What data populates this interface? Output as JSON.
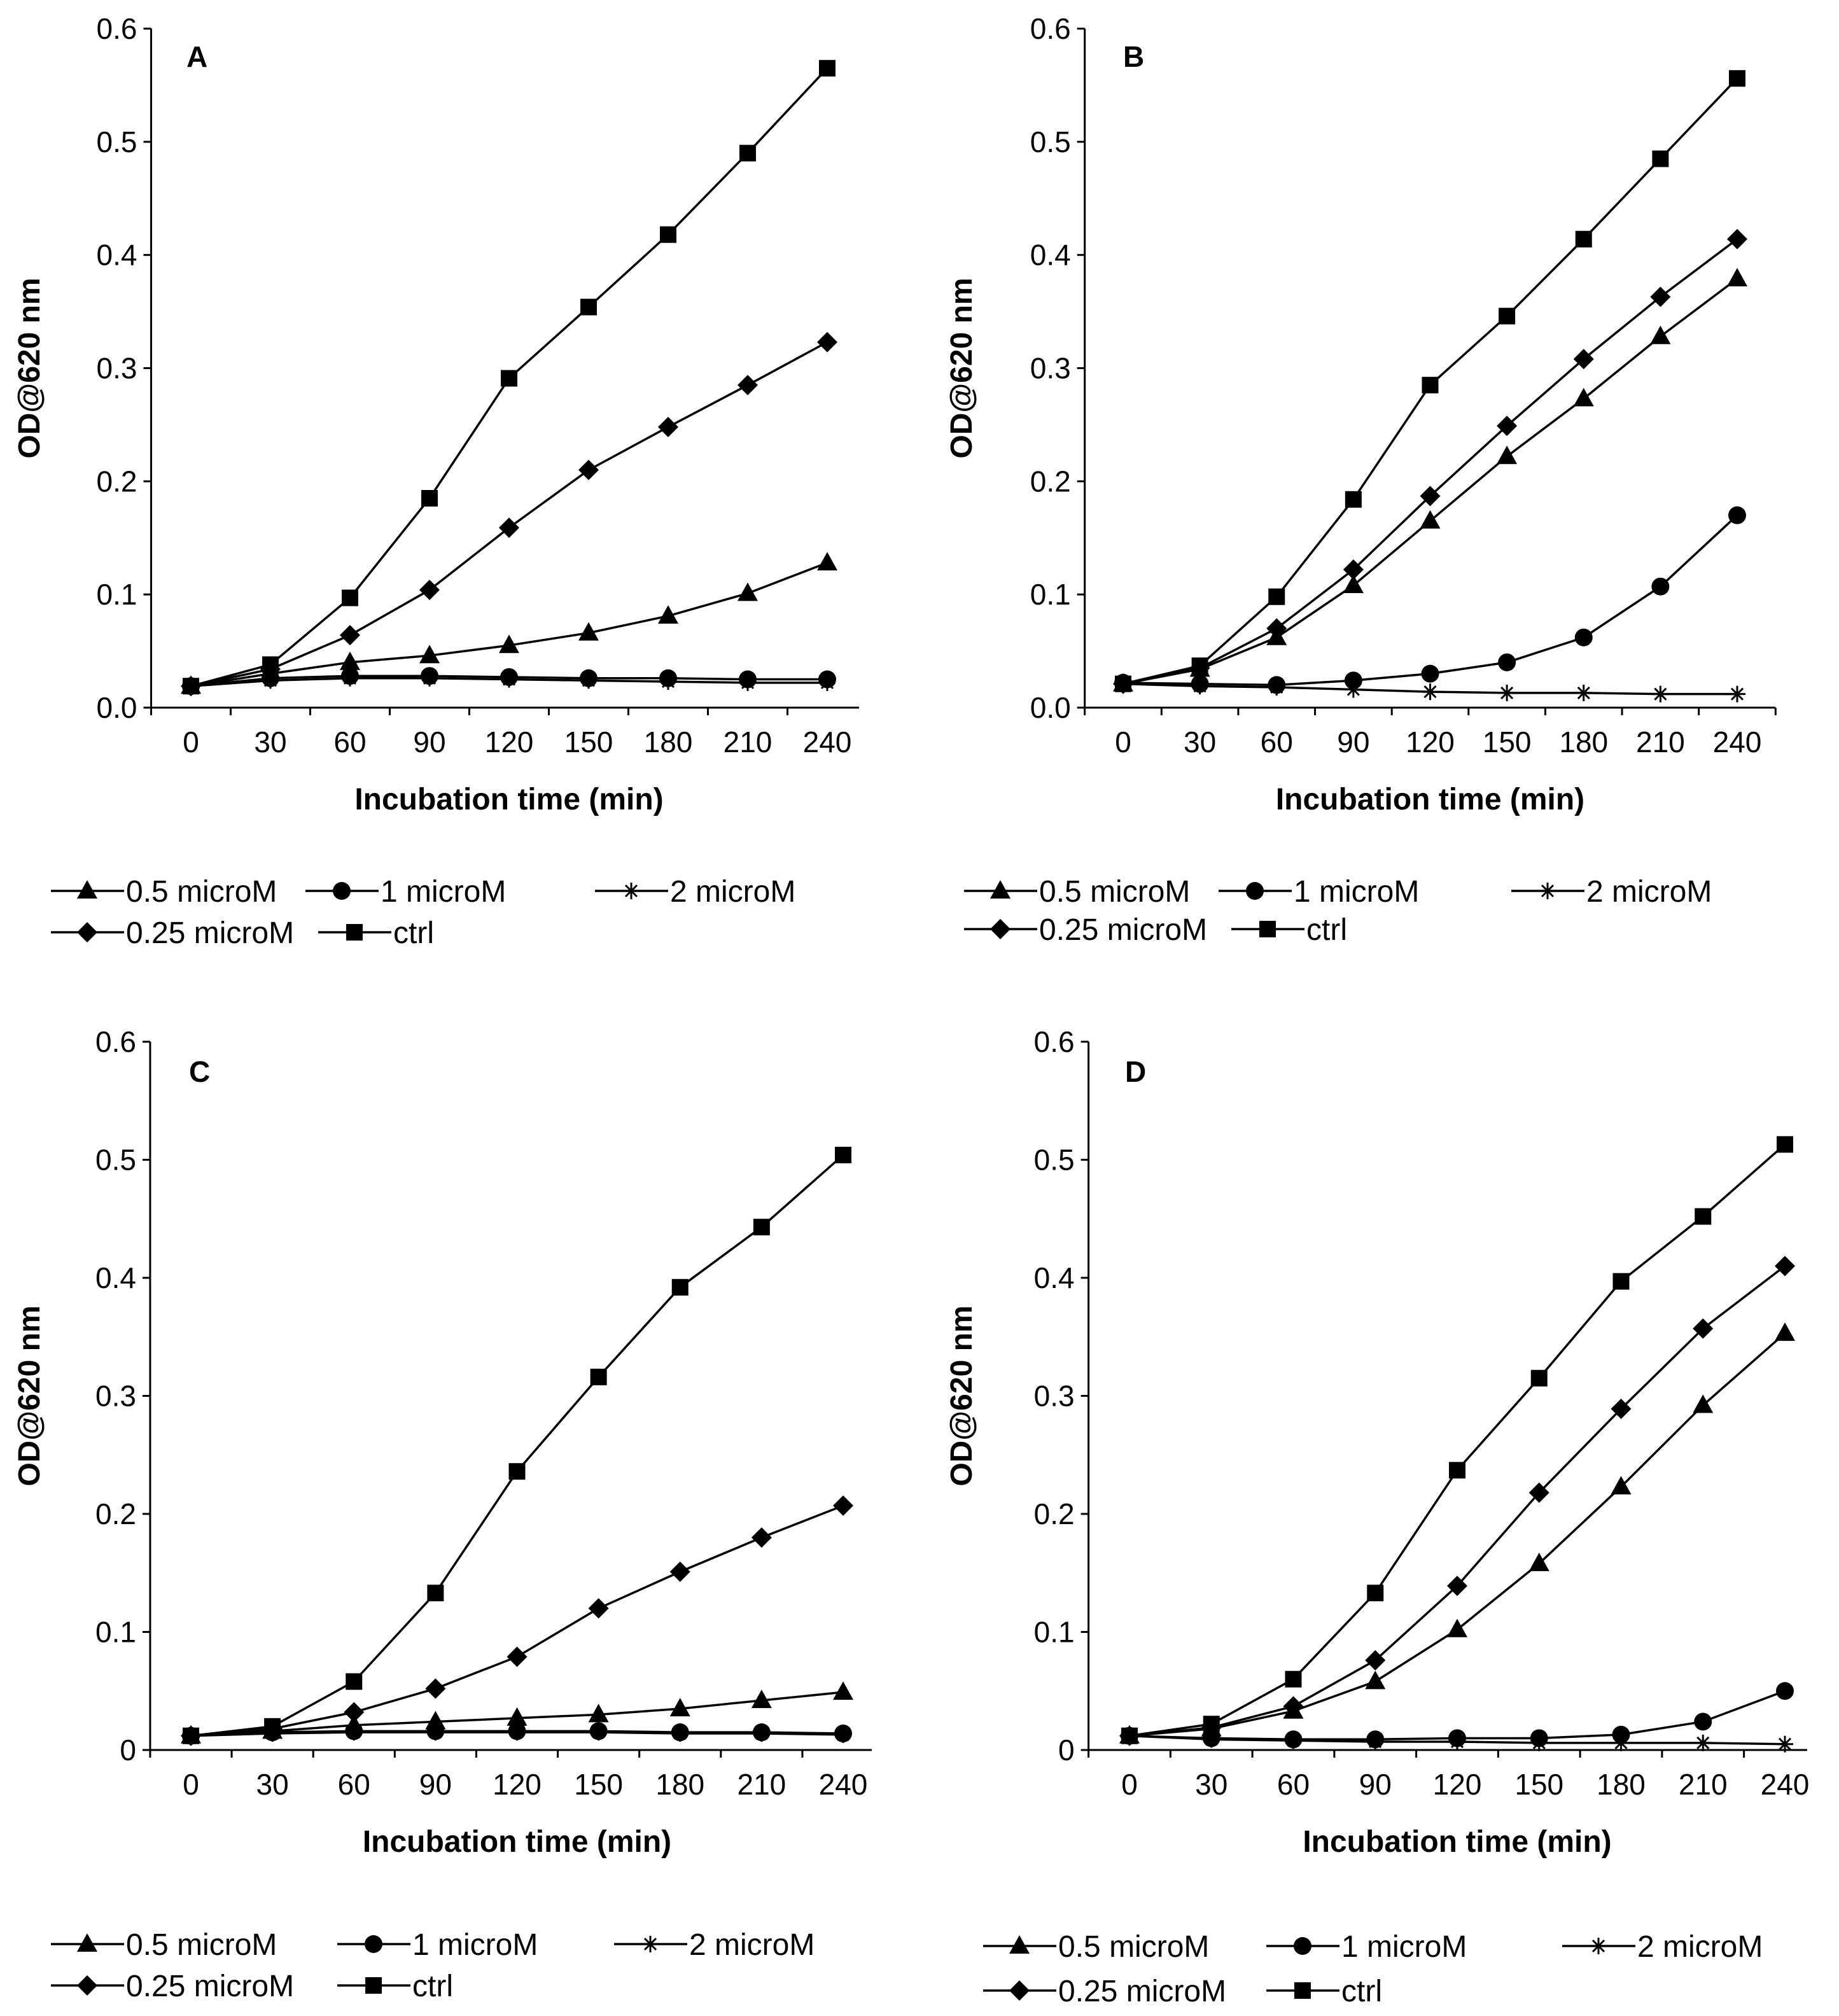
{
  "chart_data": [
    {
      "type": "line",
      "panel": "A",
      "xlabel": "Incubation time (min)",
      "ylabel": "OD@620 nm",
      "x": [
        0,
        30,
        60,
        90,
        120,
        150,
        180,
        210,
        240
      ],
      "xticks": [
        "0",
        "30",
        "60",
        "90",
        "120",
        "150",
        "180",
        "210",
        "240"
      ],
      "ylim": [
        0,
        0.6
      ],
      "yticks": [
        "0.0",
        "0.1",
        "0.2",
        "0.3",
        "0.4",
        "0.5",
        "0.6"
      ],
      "series": [
        {
          "name": "2 microM",
          "marker": "asterisk",
          "values": [
            0.019,
            0.024,
            0.026,
            0.026,
            0.025,
            0.024,
            0.023,
            0.022,
            0.022
          ]
        },
        {
          "name": "1 microM",
          "marker": "circle",
          "values": [
            0.019,
            0.026,
            0.028,
            0.028,
            0.027,
            0.026,
            0.026,
            0.025,
            0.025
          ]
        },
        {
          "name": "0.5 microM",
          "marker": "triangle",
          "values": [
            0.019,
            0.03,
            0.04,
            0.046,
            0.055,
            0.066,
            0.081,
            0.101,
            0.128
          ]
        },
        {
          "name": "0.25 microM",
          "marker": "diamond",
          "values": [
            0.019,
            0.034,
            0.064,
            0.104,
            0.159,
            0.21,
            0.248,
            0.285,
            0.323
          ]
        },
        {
          "name": "ctrl",
          "marker": "square",
          "values": [
            0.019,
            0.038,
            0.097,
            0.185,
            0.291,
            0.354,
            0.418,
            0.49,
            0.565
          ]
        }
      ]
    },
    {
      "type": "line",
      "panel": "B",
      "xlabel": "Incubation time (min)",
      "ylabel": "OD@620 nm",
      "x": [
        0,
        30,
        60,
        90,
        120,
        150,
        180,
        210,
        240
      ],
      "xticks": [
        "0",
        "30",
        "60",
        "90",
        "120",
        "150",
        "180",
        "210",
        "240"
      ],
      "ylim": [
        0,
        0.6
      ],
      "yticks": [
        "0.0",
        "0.1",
        "0.2",
        "0.3",
        "0.4",
        "0.5",
        "0.6"
      ],
      "series": [
        {
          "name": "2 microM",
          "marker": "asterisk",
          "values": [
            0.021,
            0.019,
            0.018,
            0.016,
            0.014,
            0.013,
            0.013,
            0.012,
            0.012
          ]
        },
        {
          "name": "1 microM",
          "marker": "circle",
          "values": [
            0.022,
            0.021,
            0.02,
            0.024,
            0.03,
            0.04,
            0.062,
            0.107,
            0.17
          ]
        },
        {
          "name": "0.5 microM",
          "marker": "triangle",
          "values": [
            0.021,
            0.034,
            0.062,
            0.108,
            0.165,
            0.222,
            0.273,
            0.328,
            0.379
          ]
        },
        {
          "name": "0.25 microM",
          "marker": "diamond",
          "values": [
            0.021,
            0.035,
            0.07,
            0.122,
            0.187,
            0.249,
            0.308,
            0.363,
            0.414
          ]
        },
        {
          "name": "ctrl",
          "marker": "square",
          "values": [
            0.021,
            0.037,
            0.098,
            0.184,
            0.285,
            0.346,
            0.414,
            0.485,
            0.556
          ]
        }
      ]
    },
    {
      "type": "line",
      "panel": "C",
      "xlabel": "Incubation time (min)",
      "ylabel": "OD@620 nm",
      "x": [
        0,
        30,
        60,
        90,
        120,
        150,
        180,
        210,
        240
      ],
      "xticks": [
        "0",
        "30",
        "60",
        "90",
        "120",
        "150",
        "180",
        "210",
        "240"
      ],
      "ylim": [
        0,
        0.6
      ],
      "yticks": [
        "0",
        "0.1",
        "0.2",
        "0.3",
        "0.4",
        "0.5",
        "0.6"
      ],
      "series": [
        {
          "name": "2 microM",
          "marker": "asterisk",
          "values": [
            0.012,
            0.014,
            0.015,
            0.015,
            0.015,
            0.015,
            0.014,
            0.014,
            0.013
          ]
        },
        {
          "name": "1 microM",
          "marker": "circle",
          "values": [
            0.012,
            0.015,
            0.016,
            0.016,
            0.016,
            0.016,
            0.015,
            0.015,
            0.014
          ]
        },
        {
          "name": "0.5 microM",
          "marker": "triangle",
          "values": [
            0.012,
            0.016,
            0.021,
            0.024,
            0.027,
            0.03,
            0.035,
            0.042,
            0.049
          ]
        },
        {
          "name": "0.25 microM",
          "marker": "diamond",
          "values": [
            0.012,
            0.018,
            0.032,
            0.052,
            0.079,
            0.12,
            0.151,
            0.18,
            0.207
          ]
        },
        {
          "name": "ctrl",
          "marker": "square",
          "values": [
            0.012,
            0.02,
            0.058,
            0.133,
            0.236,
            0.316,
            0.392,
            0.443,
            0.504
          ]
        }
      ]
    },
    {
      "type": "line",
      "panel": "D",
      "xlabel": "Incubation time (min)",
      "ylabel": "OD@620 nm",
      "x": [
        0,
        30,
        60,
        90,
        120,
        150,
        180,
        210,
        240
      ],
      "xticks": [
        "0",
        "30",
        "60",
        "90",
        "120",
        "150",
        "180",
        "210",
        "240"
      ],
      "ylim": [
        0,
        0.6
      ],
      "yticks": [
        "0",
        "0.1",
        "0.2",
        "0.3",
        "0.4",
        "0.5",
        "0.6"
      ],
      "series": [
        {
          "name": "2 microM",
          "marker": "asterisk",
          "values": [
            0.012,
            0.009,
            0.008,
            0.007,
            0.007,
            0.006,
            0.006,
            0.006,
            0.005
          ]
        },
        {
          "name": "1 microM",
          "marker": "circle",
          "values": [
            0.012,
            0.01,
            0.009,
            0.009,
            0.01,
            0.01,
            0.013,
            0.024,
            0.05
          ]
        },
        {
          "name": "0.5 microM",
          "marker": "triangle",
          "values": [
            0.012,
            0.018,
            0.033,
            0.058,
            0.102,
            0.158,
            0.223,
            0.292,
            0.353
          ]
        },
        {
          "name": "0.25 microM",
          "marker": "diamond",
          "values": [
            0.012,
            0.019,
            0.037,
            0.076,
            0.139,
            0.218,
            0.289,
            0.357,
            0.41
          ]
        },
        {
          "name": "ctrl",
          "marker": "square",
          "values": [
            0.012,
            0.022,
            0.06,
            0.133,
            0.237,
            0.315,
            0.397,
            0.452,
            0.513
          ]
        }
      ]
    }
  ]
}
